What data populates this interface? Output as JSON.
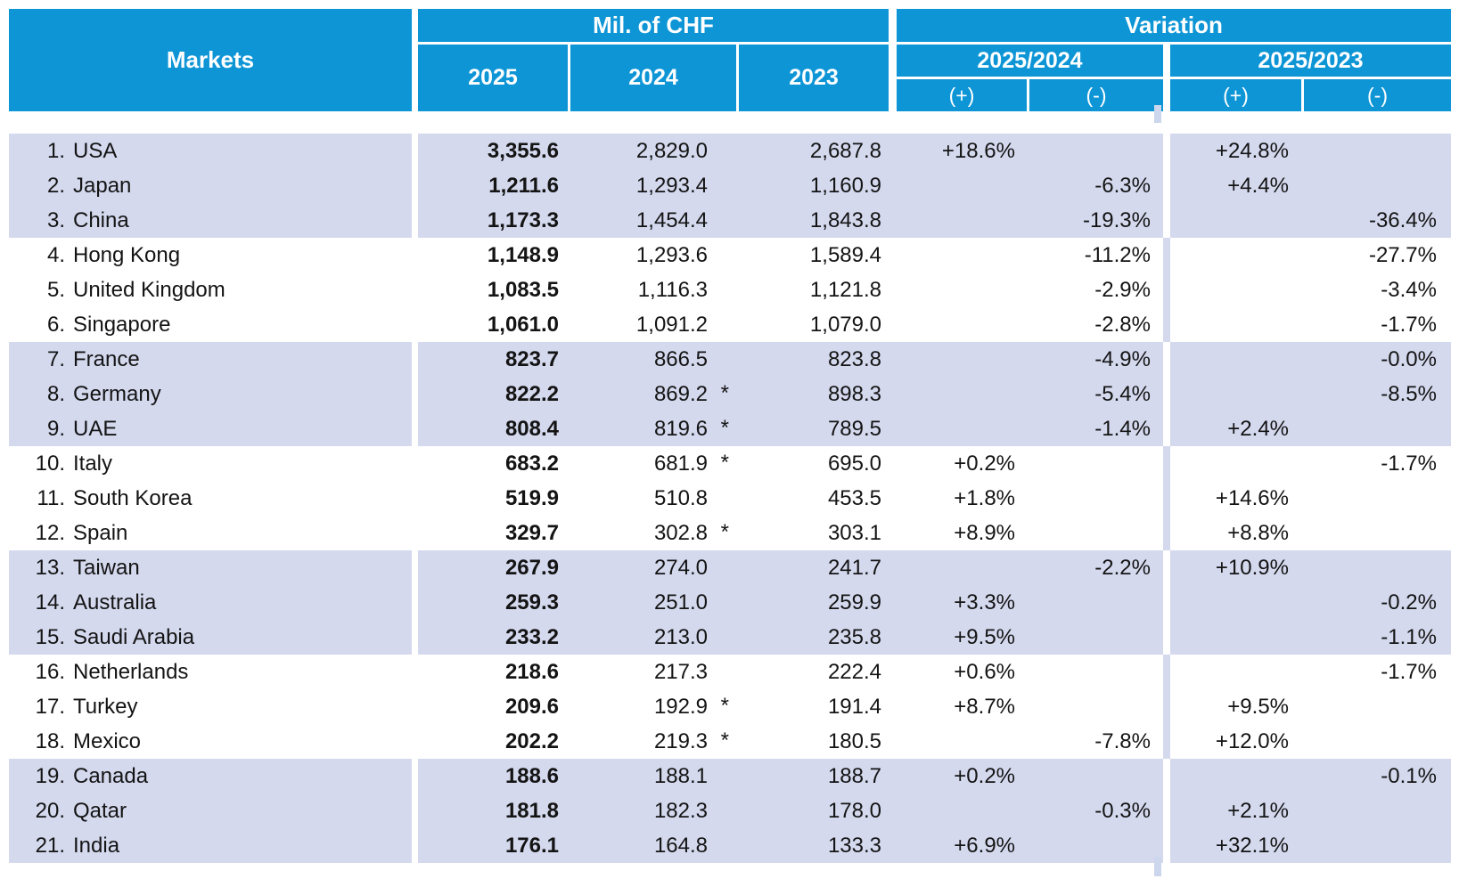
{
  "header": {
    "markets": "Markets",
    "mil_chf": "Mil. of CHF",
    "variation": "Variation",
    "years": {
      "y2025": "2025",
      "y2024": "2024",
      "y2023": "2023"
    },
    "var_groups": {
      "g2425": "2025/2024",
      "g2325": "2025/2023"
    },
    "plus": "(+)",
    "minus": "(-)"
  },
  "colors": {
    "header_blue": "#0d95d6",
    "row_lavender": "#d4d9ee",
    "header_text": "#ffffff",
    "body_text": "#141414"
  },
  "rows": [
    {
      "n": "1.",
      "market": "USA",
      "y2025": "3,355.6",
      "y2024": "2,829.0",
      "ast": "",
      "y2023": "2,687.8",
      "p1": "+18.6%",
      "m1": "",
      "p2": "+24.8%",
      "m2": ""
    },
    {
      "n": "2.",
      "market": "Japan",
      "y2025": "1,211.6",
      "y2024": "1,293.4",
      "ast": "",
      "y2023": "1,160.9",
      "p1": "",
      "m1": "-6.3%",
      "p2": "+4.4%",
      "m2": ""
    },
    {
      "n": "3.",
      "market": "China",
      "y2025": "1,173.3",
      "y2024": "1,454.4",
      "ast": "",
      "y2023": "1,843.8",
      "p1": "",
      "m1": "-19.3%",
      "p2": "",
      "m2": "-36.4%"
    },
    {
      "n": "4.",
      "market": "Hong Kong",
      "y2025": "1,148.9",
      "y2024": "1,293.6",
      "ast": "",
      "y2023": "1,589.4",
      "p1": "",
      "m1": "-11.2%",
      "p2": "",
      "m2": "-27.7%"
    },
    {
      "n": "5.",
      "market": "United Kingdom",
      "y2025": "1,083.5",
      "y2024": "1,116.3",
      "ast": "",
      "y2023": "1,121.8",
      "p1": "",
      "m1": "-2.9%",
      "p2": "",
      "m2": "-3.4%"
    },
    {
      "n": "6.",
      "market": "Singapore",
      "y2025": "1,061.0",
      "y2024": "1,091.2",
      "ast": "",
      "y2023": "1,079.0",
      "p1": "",
      "m1": "-2.8%",
      "p2": "",
      "m2": "-1.7%"
    },
    {
      "n": "7.",
      "market": "France",
      "y2025": "823.7",
      "y2024": "866.5",
      "ast": "",
      "y2023": "823.8",
      "p1": "",
      "m1": "-4.9%",
      "p2": "",
      "m2": "-0.0%"
    },
    {
      "n": "8.",
      "market": "Germany",
      "y2025": "822.2",
      "y2024": "869.2",
      "ast": "*",
      "y2023": "898.3",
      "p1": "",
      "m1": "-5.4%",
      "p2": "",
      "m2": "-8.5%"
    },
    {
      "n": "9.",
      "market": "UAE",
      "y2025": "808.4",
      "y2024": "819.6",
      "ast": "*",
      "y2023": "789.5",
      "p1": "",
      "m1": "-1.4%",
      "p2": "+2.4%",
      "m2": ""
    },
    {
      "n": "10.",
      "market": "Italy",
      "y2025": "683.2",
      "y2024": "681.9",
      "ast": "*",
      "y2023": "695.0",
      "p1": "+0.2%",
      "m1": "",
      "p2": "",
      "m2": "-1.7%"
    },
    {
      "n": "11.",
      "market": "South Korea",
      "y2025": "519.9",
      "y2024": "510.8",
      "ast": "",
      "y2023": "453.5",
      "p1": "+1.8%",
      "m1": "",
      "p2": "+14.6%",
      "m2": ""
    },
    {
      "n": "12.",
      "market": "Spain",
      "y2025": "329.7",
      "y2024": "302.8",
      "ast": "*",
      "y2023": "303.1",
      "p1": "+8.9%",
      "m1": "",
      "p2": "+8.8%",
      "m2": ""
    },
    {
      "n": "13.",
      "market": "Taiwan",
      "y2025": "267.9",
      "y2024": "274.0",
      "ast": "",
      "y2023": "241.7",
      "p1": "",
      "m1": "-2.2%",
      "p2": "+10.9%",
      "m2": ""
    },
    {
      "n": "14.",
      "market": "Australia",
      "y2025": "259.3",
      "y2024": "251.0",
      "ast": "",
      "y2023": "259.9",
      "p1": "+3.3%",
      "m1": "",
      "p2": "",
      "m2": "-0.2%"
    },
    {
      "n": "15.",
      "market": "Saudi Arabia",
      "y2025": "233.2",
      "y2024": "213.0",
      "ast": "",
      "y2023": "235.8",
      "p1": "+9.5%",
      "m1": "",
      "p2": "",
      "m2": "-1.1%"
    },
    {
      "n": "16.",
      "market": "Netherlands",
      "y2025": "218.6",
      "y2024": "217.3",
      "ast": "",
      "y2023": "222.4",
      "p1": "+0.6%",
      "m1": "",
      "p2": "",
      "m2": "-1.7%"
    },
    {
      "n": "17.",
      "market": "Turkey",
      "y2025": "209.6",
      "y2024": "192.9",
      "ast": "*",
      "y2023": "191.4",
      "p1": "+8.7%",
      "m1": "",
      "p2": "+9.5%",
      "m2": ""
    },
    {
      "n": "18.",
      "market": "Mexico",
      "y2025": "202.2",
      "y2024": "219.3",
      "ast": "*",
      "y2023": "180.5",
      "p1": "",
      "m1": "-7.8%",
      "p2": "+12.0%",
      "m2": ""
    },
    {
      "n": "19.",
      "market": "Canada",
      "y2025": "188.6",
      "y2024": "188.1",
      "ast": "",
      "y2023": "188.7",
      "p1": "+0.2%",
      "m1": "",
      "p2": "",
      "m2": "-0.1%"
    },
    {
      "n": "20.",
      "market": "Qatar",
      "y2025": "181.8",
      "y2024": "182.3",
      "ast": "",
      "y2023": "178.0",
      "p1": "",
      "m1": "-0.3%",
      "p2": "+2.1%",
      "m2": ""
    },
    {
      "n": "21.",
      "market": "India",
      "y2025": "176.1",
      "y2024": "164.8",
      "ast": "",
      "y2023": "133.3",
      "p1": "+6.9%",
      "m1": "",
      "p2": "+32.1%",
      "m2": ""
    }
  ],
  "chart_data": {
    "type": "table",
    "title": "Markets — Mil. of CHF (2025, 2024, 2023) with Variation 2025/2024 and 2025/2023",
    "columns": [
      "Markets",
      "2025 (Mil. of CHF)",
      "2024 (Mil. of CHF)",
      "2023 (Mil. of CHF)",
      "Variation 2025/2024",
      "Variation 2025/2023"
    ],
    "rows": [
      [
        "USA",
        3355.6,
        2829.0,
        2687.8,
        "+18.6%",
        "+24.8%"
      ],
      [
        "Japan",
        1211.6,
        1293.4,
        1160.9,
        "-6.3%",
        "+4.4%"
      ],
      [
        "China",
        1173.3,
        1454.4,
        1843.8,
        "-19.3%",
        "-36.4%"
      ],
      [
        "Hong Kong",
        1148.9,
        1293.6,
        1589.4,
        "-11.2%",
        "-27.7%"
      ],
      [
        "United Kingdom",
        1083.5,
        1116.3,
        1121.8,
        "-2.9%",
        "-3.4%"
      ],
      [
        "Singapore",
        1061.0,
        1091.2,
        1079.0,
        "-2.8%",
        "-1.7%"
      ],
      [
        "France",
        823.7,
        866.5,
        823.8,
        "-4.9%",
        "-0.0%"
      ],
      [
        "Germany",
        822.2,
        869.2,
        898.3,
        "-5.4%",
        "-8.5%"
      ],
      [
        "UAE",
        808.4,
        819.6,
        789.5,
        "-1.4%",
        "+2.4%"
      ],
      [
        "Italy",
        683.2,
        681.9,
        695.0,
        "+0.2%",
        "-1.7%"
      ],
      [
        "South Korea",
        519.9,
        510.8,
        453.5,
        "+1.8%",
        "+14.6%"
      ],
      [
        "Spain",
        329.7,
        302.8,
        303.1,
        "+8.9%",
        "+8.8%"
      ],
      [
        "Taiwan",
        267.9,
        274.0,
        241.7,
        "-2.2%",
        "+10.9%"
      ],
      [
        "Australia",
        259.3,
        251.0,
        259.9,
        "+3.3%",
        "-0.2%"
      ],
      [
        "Saudi Arabia",
        233.2,
        213.0,
        235.8,
        "+9.5%",
        "-1.1%"
      ],
      [
        "Netherlands",
        218.6,
        217.3,
        222.4,
        "+0.6%",
        "-1.7%"
      ],
      [
        "Turkey",
        209.6,
        192.9,
        191.4,
        "+8.7%",
        "+9.5%"
      ],
      [
        "Mexico",
        202.2,
        219.3,
        180.5,
        "-7.8%",
        "+12.0%"
      ],
      [
        "Canada",
        188.6,
        188.1,
        188.7,
        "+0.2%",
        "-0.1%"
      ],
      [
        "Qatar",
        181.8,
        182.3,
        178.0,
        "-0.3%",
        "+2.1%"
      ],
      [
        "India",
        176.1,
        164.8,
        133.3,
        "+6.9%",
        "+32.1%"
      ]
    ],
    "asterisk_2024_rows": [
      "Germany",
      "UAE",
      "Italy",
      "Spain",
      "Turkey",
      "Mexico"
    ],
    "layout": {
      "row_group_banding": 3,
      "band_color": "#d4d9ee",
      "header_color": "#0d95d6"
    }
  }
}
